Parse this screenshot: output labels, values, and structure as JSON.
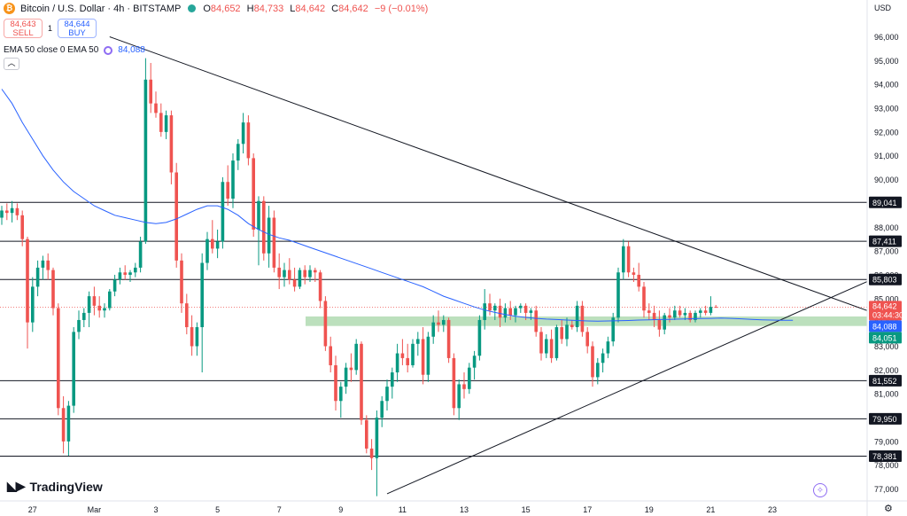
{
  "header": {
    "title": "Bitcoin / U.S. Dollar · 4h · BITSTAMP",
    "o_label": "O",
    "o_value": "84,652",
    "h_label": "H",
    "h_value": "84,733",
    "l_label": "L",
    "l_value": "84,642",
    "c_label": "C",
    "c_value": "84,642",
    "change": "−9 (−0.01%)"
  },
  "trade": {
    "sell_price": "84,643",
    "sell_label": "SELL",
    "spread": "1",
    "buy_price": "84,644",
    "buy_label": "BUY"
  },
  "indicator": {
    "label": "EMA 50 close 0 EMA 50",
    "value": "84,088"
  },
  "collapse_icon": "chevron-up",
  "brand": "TradingView",
  "currency": "USD",
  "colors": {
    "up": "#089981",
    "down": "#ef5350",
    "ema": "#2962ff",
    "zone": "#a5d6a7",
    "line": "#131722",
    "level_tag": "#131722"
  },
  "chart_data": {
    "type": "candlestick",
    "ylim": [
      76500,
      96800
    ],
    "y_ticks": [
      "77,000",
      "78,000",
      "79,000",
      "80,000",
      "81,000",
      "82,000",
      "83,000",
      "84,000",
      "85,000",
      "86,000",
      "87,000",
      "88,000",
      "89,000",
      "90,000",
      "91,000",
      "92,000",
      "93,000",
      "94,000",
      "95,000",
      "96,000"
    ],
    "y_tick_values": [
      77000,
      78000,
      79000,
      80000,
      81000,
      82000,
      83000,
      84000,
      85000,
      86000,
      87000,
      88000,
      89000,
      90000,
      91000,
      92000,
      93000,
      94000,
      95000,
      96000
    ],
    "x_ticks": [
      "27",
      "Mar",
      "3",
      "5",
      "7",
      "9",
      "11",
      "13",
      "15",
      "17",
      "19",
      "21",
      "23"
    ],
    "x_tick_candles": [
      6,
      18,
      30,
      42,
      54,
      66,
      78,
      90,
      102,
      114,
      126,
      138,
      150
    ],
    "levels": [
      89041,
      87411,
      85803,
      81552,
      79950,
      78381
    ],
    "level_labels": [
      "89,041",
      "87,411",
      "85,803",
      "81,552",
      "79,950",
      "78,381"
    ],
    "support_zone": [
      83850,
      84250
    ],
    "trendlines": [
      {
        "name": "upper",
        "from": [
          21,
          96000
        ],
        "to": [
          162,
          85000
        ]
      },
      {
        "name": "lower",
        "from": [
          75,
          76800
        ],
        "to": [
          162,
          85100
        ]
      }
    ],
    "price_labels": [
      {
        "text": "84,642",
        "sub": "03:44:30",
        "value": 84642,
        "color": "#ef5350"
      },
      {
        "text": "84,088",
        "value": 84088,
        "color": "#2962ff"
      },
      {
        "text": "84,051",
        "value": 84051,
        "color": "#089981"
      }
    ],
    "candles": [
      [
        88400,
        88900,
        88100,
        88700
      ],
      [
        88700,
        89000,
        88300,
        88600
      ],
      [
        88600,
        89100,
        88200,
        88800
      ],
      [
        88800,
        89000,
        88300,
        88500
      ],
      [
        88500,
        88700,
        87200,
        87500
      ],
      [
        87500,
        87600,
        82900,
        84000
      ],
      [
        84000,
        85900,
        83600,
        85500
      ],
      [
        85500,
        86600,
        85100,
        86300
      ],
      [
        86300,
        86800,
        85800,
        86600
      ],
      [
        86600,
        86900,
        85800,
        86200
      ],
      [
        86200,
        86300,
        84300,
        84600
      ],
      [
        84600,
        84800,
        80100,
        80400
      ],
      [
        80400,
        80900,
        78500,
        79000
      ],
      [
        79000,
        80700,
        78400,
        80500
      ],
      [
        80500,
        83800,
        80200,
        83600
      ],
      [
        83600,
        84500,
        83300,
        84100
      ],
      [
        84100,
        84600,
        83800,
        84400
      ],
      [
        84400,
        85300,
        83800,
        85100
      ],
      [
        85100,
        85500,
        84300,
        84700
      ],
      [
        84700,
        85100,
        84200,
        84500
      ],
      [
        84500,
        84800,
        84200,
        84600
      ],
      [
        84600,
        85400,
        84500,
        85300
      ],
      [
        85300,
        86000,
        85100,
        85800
      ],
      [
        85800,
        86300,
        85600,
        86100
      ],
      [
        86100,
        86400,
        85800,
        86000
      ],
      [
        86000,
        86200,
        85700,
        86100
      ],
      [
        86100,
        86500,
        85900,
        86300
      ],
      [
        86300,
        87600,
        86100,
        87400
      ],
      [
        87400,
        95100,
        87300,
        94200
      ],
      [
        94200,
        94900,
        92800,
        93200
      ],
      [
        93200,
        93700,
        92600,
        92800
      ],
      [
        92800,
        93200,
        91800,
        92000
      ],
      [
        92000,
        92900,
        91700,
        92700
      ],
      [
        92700,
        92900,
        89800,
        90300
      ],
      [
        90300,
        90700,
        86300,
        86600
      ],
      [
        86600,
        86900,
        84400,
        84800
      ],
      [
        84800,
        85200,
        83500,
        83800
      ],
      [
        83800,
        84300,
        82600,
        83000
      ],
      [
        83000,
        84000,
        82600,
        83800
      ],
      [
        83800,
        86900,
        81900,
        86500
      ],
      [
        86500,
        87800,
        86200,
        87500
      ],
      [
        87500,
        88300,
        86900,
        87100
      ],
      [
        87100,
        87900,
        86700,
        87400
      ],
      [
        87400,
        90100,
        87100,
        89900
      ],
      [
        89900,
        90600,
        88900,
        89200
      ],
      [
        89200,
        91100,
        88800,
        90800
      ],
      [
        90800,
        91700,
        90400,
        91500
      ],
      [
        91500,
        92800,
        91100,
        92400
      ],
      [
        92400,
        92700,
        90600,
        90900
      ],
      [
        90900,
        91100,
        87600,
        87900
      ],
      [
        87900,
        89300,
        86400,
        89100
      ],
      [
        89100,
        89300,
        86600,
        86900
      ],
      [
        86900,
        88900,
        86300,
        88400
      ],
      [
        88400,
        88700,
        86100,
        86300
      ],
      [
        86300,
        86900,
        85400,
        85900
      ],
      [
        85900,
        86500,
        85500,
        86200
      ],
      [
        86200,
        86700,
        85600,
        85800
      ],
      [
        85800,
        86300,
        85300,
        85500
      ],
      [
        85500,
        86300,
        85400,
        86200
      ],
      [
        86200,
        86400,
        85600,
        85900
      ],
      [
        85900,
        86400,
        85700,
        86200
      ],
      [
        86200,
        86300,
        85700,
        86100
      ],
      [
        86100,
        86200,
        84600,
        84900
      ],
      [
        84900,
        85100,
        82800,
        83000
      ],
      [
        83000,
        83400,
        81900,
        82200
      ],
      [
        82200,
        82600,
        80300,
        80700
      ],
      [
        80700,
        81500,
        80000,
        81300
      ],
      [
        81300,
        82300,
        81000,
        82100
      ],
      [
        82100,
        82700,
        81500,
        82000
      ],
      [
        82000,
        83300,
        81800,
        83100
      ],
      [
        83100,
        83200,
        79700,
        79900
      ],
      [
        79900,
        80100,
        78500,
        78700
      ],
      [
        78700,
        79100,
        77800,
        78300
      ],
      [
        78300,
        80300,
        76700,
        80000
      ],
      [
        80000,
        80900,
        79600,
        80700
      ],
      [
        80700,
        81600,
        80300,
        81300
      ],
      [
        81300,
        82100,
        80800,
        81900
      ],
      [
        81900,
        83100,
        81500,
        82700
      ],
      [
        82700,
        83300,
        82200,
        82500
      ],
      [
        82500,
        83100,
        81900,
        82200
      ],
      [
        82200,
        83300,
        82100,
        83100
      ],
      [
        83100,
        83600,
        82600,
        83300
      ],
      [
        83300,
        83800,
        81400,
        81800
      ],
      [
        81800,
        83600,
        81500,
        83400
      ],
      [
        83400,
        84300,
        83100,
        84000
      ],
      [
        84000,
        84500,
        83600,
        83900
      ],
      [
        83900,
        84300,
        83600,
        84100
      ],
      [
        84100,
        84200,
        82300,
        82500
      ],
      [
        82500,
        82700,
        80100,
        80400
      ],
      [
        80400,
        81600,
        79900,
        81400
      ],
      [
        81400,
        81900,
        80800,
        81200
      ],
      [
        81200,
        82300,
        81000,
        82100
      ],
      [
        82100,
        82800,
        81600,
        82600
      ],
      [
        82600,
        84300,
        82400,
        84100
      ],
      [
        84100,
        85400,
        83700,
        84800
      ],
      [
        84800,
        85200,
        84300,
        84500
      ],
      [
        84500,
        84800,
        84100,
        84700
      ],
      [
        84700,
        85000,
        83800,
        84200
      ],
      [
        84200,
        84800,
        84000,
        84600
      ],
      [
        84600,
        84900,
        84100,
        84300
      ],
      [
        84300,
        84700,
        84000,
        84600
      ],
      [
        84600,
        84800,
        84400,
        84700
      ],
      [
        84700,
        84800,
        84100,
        84400
      ],
      [
        84400,
        84600,
        84100,
        84500
      ],
      [
        84500,
        84700,
        83400,
        83600
      ],
      [
        83600,
        83800,
        82400,
        82700
      ],
      [
        82700,
        83500,
        82500,
        83300
      ],
      [
        83300,
        83700,
        82300,
        82500
      ],
      [
        82500,
        83900,
        82400,
        83800
      ],
      [
        83800,
        84100,
        83100,
        83300
      ],
      [
        83300,
        84200,
        83000,
        83900
      ],
      [
        83900,
        84100,
        83700,
        83800
      ],
      [
        83800,
        84900,
        83600,
        84700
      ],
      [
        84700,
        84900,
        83400,
        83600
      ],
      [
        83600,
        83800,
        82700,
        83000
      ],
      [
        83000,
        83200,
        81300,
        81700
      ],
      [
        81700,
        82500,
        81400,
        82300
      ],
      [
        82300,
        82900,
        81900,
        82700
      ],
      [
        82700,
        83400,
        82500,
        83200
      ],
      [
        83200,
        84400,
        83000,
        84200
      ],
      [
        84200,
        86300,
        84000,
        86100
      ],
      [
        86100,
        87500,
        85800,
        87200
      ],
      [
        87200,
        87400,
        85900,
        86100
      ],
      [
        86100,
        86300,
        85700,
        86000
      ],
      [
        86000,
        86500,
        85300,
        85500
      ],
      [
        85500,
        85700,
        84200,
        84500
      ],
      [
        84500,
        84800,
        84100,
        84400
      ],
      [
        84400,
        84700,
        83800,
        84100
      ],
      [
        84100,
        84500,
        83400,
        83700
      ],
      [
        83700,
        84400,
        83500,
        84300
      ],
      [
        84300,
        84600,
        84000,
        84200
      ],
      [
        84200,
        84700,
        84100,
        84500
      ],
      [
        84500,
        84700,
        84200,
        84300
      ],
      [
        84300,
        84600,
        84100,
        84400
      ],
      [
        84400,
        84500,
        84000,
        84100
      ],
      [
        84100,
        84500,
        84000,
        84400
      ],
      [
        84400,
        84600,
        84200,
        84500
      ],
      [
        84500,
        84700,
        84300,
        84400
      ],
      [
        84400,
        85100,
        84300,
        84650
      ],
      [
        84652,
        84733,
        84642,
        84642
      ]
    ],
    "ema": [
      93800,
      93200,
      92400,
      91700,
      91000,
      90400,
      89900,
      89500,
      89200,
      88900,
      88700,
      88500,
      88400,
      88300,
      88200,
      88150,
      88200,
      88350,
      88550,
      88750,
      88900,
      88900,
      88750,
      88500,
      88150,
      87900,
      87700,
      87550,
      87450,
      87300,
      87150,
      87000,
      86850,
      86700,
      86550,
      86400,
      86250,
      86100,
      85950,
      85800,
      85650,
      85500,
      85300,
      85100,
      84950,
      84800,
      84650,
      84520,
      84420,
      84330,
      84260,
      84210,
      84170,
      84140,
      84120,
      84100,
      84080,
      84060,
      84050,
      84060,
      84070,
      84080,
      84100,
      84110,
      84120,
      84130,
      84140,
      84150,
      84160,
      84170,
      84180,
      84170,
      84150,
      84130,
      84110,
      84100,
      84090,
      84088
    ]
  }
}
